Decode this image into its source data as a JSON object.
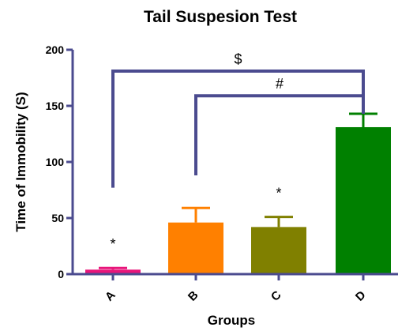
{
  "chart_data": {
    "type": "bar",
    "title": "Tail Suspesion Test",
    "xlabel": "Groups",
    "ylabel": "Time of Immobility (S)",
    "ylim": [
      0,
      200
    ],
    "yticks": [
      0,
      50,
      100,
      150,
      200
    ],
    "categories": [
      "A",
      "B",
      "C",
      "D"
    ],
    "values": [
      4,
      46,
      42,
      131
    ],
    "errors": [
      1.5,
      13,
      9,
      12
    ],
    "bar_colors": [
      "#e8157a",
      "#ff8000",
      "#808000",
      "#008000"
    ],
    "bar_annotations": [
      "*",
      "",
      "*",
      ""
    ],
    "brackets": [
      {
        "label": "$",
        "from": "A",
        "to": "D",
        "y": 181,
        "from_end": 77,
        "to_end": 158
      },
      {
        "label": "#",
        "from": "B",
        "to": "D",
        "y": 159,
        "from_end": 88,
        "to_end": 143
      }
    ],
    "bracket_color": "#4b4b8f",
    "grid": false
  }
}
